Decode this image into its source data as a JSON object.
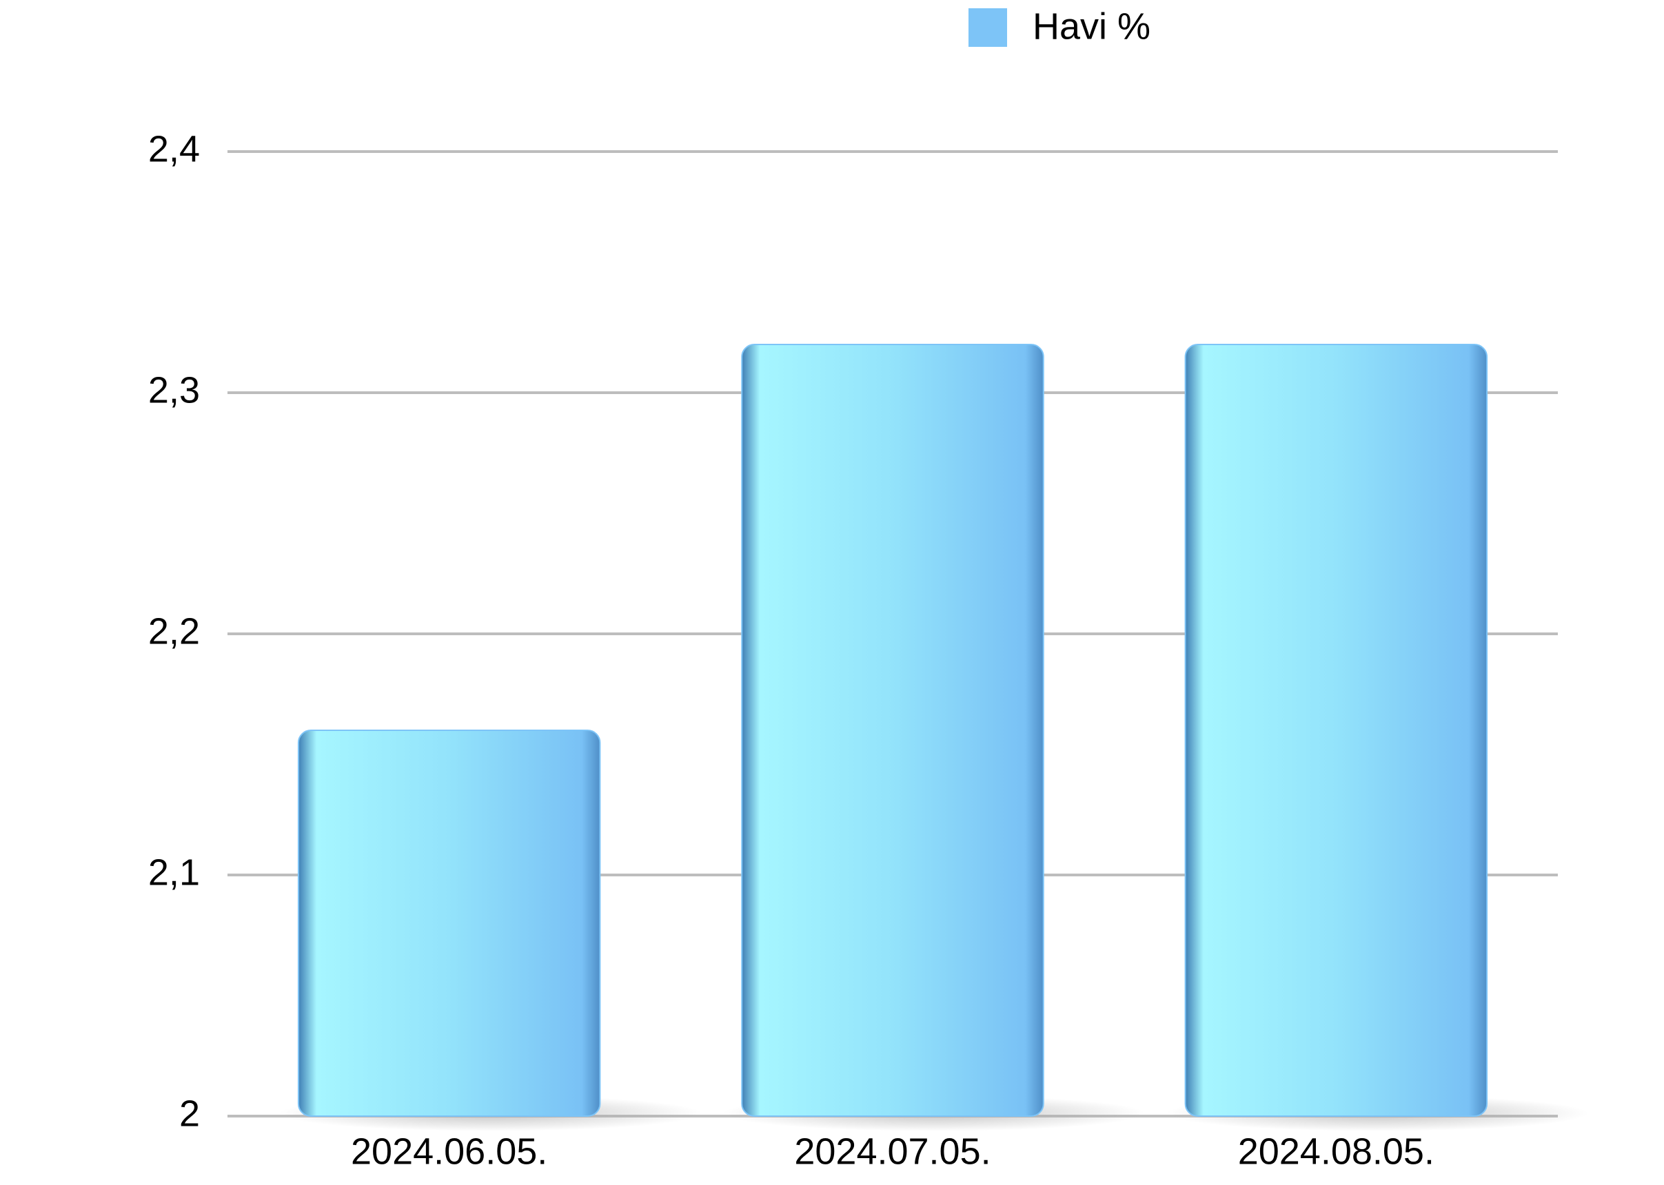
{
  "chart_data": {
    "type": "bar",
    "categories": [
      "2024.06.05.",
      "2024.07.05.",
      "2024.08.05."
    ],
    "series": [
      {
        "name": "Havi %",
        "color": "#7dc4f7",
        "values": [
          2.16,
          2.32,
          2.32
        ]
      }
    ],
    "ylim": [
      2,
      2.4
    ],
    "yticks": [
      2,
      {
        "value": 2.1,
        "label": "2,1"
      },
      {
        "value": 2.2,
        "label": "2,2"
      },
      {
        "value": 2.3,
        "label": "2,3"
      },
      {
        "value": 2.4,
        "label": "2,4"
      }
    ],
    "grid": true,
    "legend": "top"
  }
}
